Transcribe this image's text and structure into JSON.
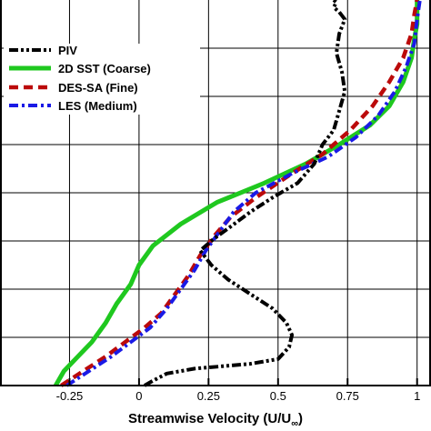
{
  "chart_data": {
    "type": "line",
    "title": "",
    "xlabel": "Streamwise Velocity (U/U",
    "xlabel_subscript": "∞",
    "xlabel_suffix": ")",
    "ylabel": "",
    "xlim": [
      -0.5,
      1.05
    ],
    "ylim": [
      0,
      8
    ],
    "x_ticks": [
      -0.25,
      0,
      0.25,
      0.5,
      0.75,
      1
    ],
    "x_tick_labels": [
      "-0.25",
      "0",
      "0.25",
      "0.5",
      "0.75",
      "1"
    ],
    "grid": true,
    "legend_position": "top-left",
    "series": [
      {
        "name": "PIV",
        "color": "#000000",
        "dash": "dashdotdot",
        "x": [
          0.02,
          0.05,
          0.1,
          0.2,
          0.3,
          0.4,
          0.5,
          0.54,
          0.55,
          0.53,
          0.48,
          0.4,
          0.32,
          0.26,
          0.22,
          0.27,
          0.33,
          0.4,
          0.48,
          0.57,
          0.63,
          0.66,
          0.7,
          0.72,
          0.74,
          0.73,
          0.71,
          0.72,
          0.74,
          0.72,
          0.7,
          0.71,
          0.7
        ],
        "y": [
          0.0,
          0.1,
          0.25,
          0.35,
          0.4,
          0.45,
          0.55,
          0.8,
          1.05,
          1.3,
          1.6,
          1.9,
          2.2,
          2.5,
          2.8,
          3.05,
          3.3,
          3.6,
          3.9,
          4.2,
          4.6,
          5.0,
          5.3,
          5.7,
          6.1,
          6.5,
          6.9,
          7.3,
          7.6,
          7.75,
          7.85,
          7.95,
          8.0
        ]
      },
      {
        "name": "2D SST (Coarse)",
        "color": "#1fc81f",
        "dash": "solid",
        "x": [
          -0.3,
          -0.27,
          -0.22,
          -0.17,
          -0.12,
          -0.08,
          -0.03,
          0.0,
          0.05,
          0.15,
          0.28,
          0.45,
          0.6,
          0.72,
          0.83,
          0.9,
          0.95,
          0.98,
          0.99,
          1.0,
          1.0,
          1.0
        ],
        "y": [
          0.0,
          0.3,
          0.6,
          0.9,
          1.3,
          1.7,
          2.1,
          2.5,
          2.9,
          3.35,
          3.8,
          4.2,
          4.6,
          5.0,
          5.4,
          5.8,
          6.3,
          6.8,
          7.2,
          7.5,
          7.8,
          8.0
        ]
      },
      {
        "name": "DES-SA (Fine)",
        "color": "#bb0a0a",
        "dash": "dash",
        "x": [
          -0.28,
          -0.2,
          -0.12,
          -0.05,
          0.02,
          0.08,
          0.13,
          0.18,
          0.22,
          0.27,
          0.33,
          0.42,
          0.55,
          0.66,
          0.76,
          0.84,
          0.9,
          0.95,
          0.98,
          0.99,
          1.0
        ],
        "y": [
          0.0,
          0.3,
          0.6,
          0.9,
          1.2,
          1.5,
          1.9,
          2.3,
          2.7,
          3.1,
          3.5,
          3.9,
          4.4,
          4.8,
          5.3,
          5.8,
          6.3,
          6.8,
          7.3,
          7.7,
          8.0
        ]
      },
      {
        "name": "LES (Medium)",
        "color": "#1a1ae6",
        "dash": "dashdot",
        "x": [
          -0.26,
          -0.18,
          -0.1,
          -0.03,
          0.04,
          0.1,
          0.15,
          0.2,
          0.24,
          0.29,
          0.34,
          0.42,
          0.55,
          0.68,
          0.78,
          0.86,
          0.92,
          0.96,
          0.99,
          1.0,
          1.01
        ],
        "y": [
          0.0,
          0.3,
          0.6,
          0.9,
          1.2,
          1.6,
          2.0,
          2.4,
          2.8,
          3.2,
          3.6,
          4.0,
          4.4,
          4.75,
          5.15,
          5.6,
          6.1,
          6.6,
          7.1,
          7.6,
          8.0
        ]
      }
    ]
  }
}
